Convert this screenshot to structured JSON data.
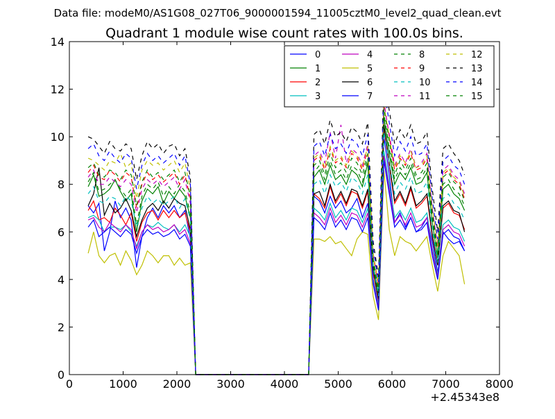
{
  "chart_data": {
    "type": "line",
    "suptitle": "Data file: modeM0/AS1G08_027T06_9000001594_11005cztM0_level2_quad_clean.evt",
    "title": "Quadrant 1 module wise count rates with 100.0s bins.",
    "xlabel": "",
    "ylabel": "",
    "x_offset_label": "+2.45343e8",
    "xlim": [
      0,
      8000
    ],
    "ylim": [
      0,
      14
    ],
    "x_ticks": [
      0,
      1000,
      2000,
      3000,
      4000,
      5000,
      6000,
      7000,
      8000
    ],
    "y_ticks": [
      0,
      2,
      4,
      6,
      8,
      10,
      12,
      14
    ],
    "grid": false,
    "legend": {
      "position": "top-right",
      "columns": 4
    },
    "x": [
      350,
      450,
      550,
      650,
      750,
      850,
      950,
      1050,
      1150,
      1250,
      1350,
      1450,
      1550,
      1650,
      1750,
      1850,
      1950,
      2050,
      2150,
      2250,
      2350,
      2450,
      2550,
      2650,
      2750,
      2850,
      2950,
      3050,
      3150,
      3250,
      3350,
      3450,
      3550,
      3650,
      3750,
      3850,
      3950,
      4050,
      4150,
      4250,
      4350,
      4450,
      4550,
      4650,
      4750,
      4850,
      4950,
      5050,
      5150,
      5250,
      5350,
      5450,
      5550,
      5650,
      5750,
      5850,
      5950,
      6050,
      6150,
      6250,
      6350,
      6450,
      6550,
      6650,
      6750,
      6850,
      6950,
      7050,
      7150,
      7250,
      7350
    ],
    "series": [
      {
        "name": "0",
        "color": "#0000ff",
        "dash": "solid",
        "values": [
          7.1,
          6.8,
          7.2,
          5.2,
          6.0,
          7.3,
          6.6,
          7.0,
          6.5,
          4.5,
          5.8,
          6.6,
          7.0,
          6.6,
          7.1,
          6.8,
          7.1,
          6.6,
          6.9,
          5.7,
          0,
          0,
          0,
          0,
          0,
          0,
          0,
          0,
          0,
          0,
          0,
          0,
          0,
          0,
          0,
          0,
          0,
          0,
          0,
          0,
          0,
          0,
          7.5,
          7.3,
          6.8,
          7.5,
          7.0,
          7.3,
          6.8,
          7.0,
          7.4,
          6.6,
          7.2,
          4.0,
          3.0,
          10.0,
          8.4,
          6.4,
          6.8,
          6.2,
          6.6,
          6.0,
          6.2,
          6.6,
          5.6,
          4.3,
          6.0,
          5.7,
          5.5,
          5.6,
          5.2
        ]
      },
      {
        "name": "1",
        "color": "#008000",
        "dash": "solid",
        "values": [
          7.9,
          8.4,
          7.5,
          7.6,
          7.8,
          8.2,
          7.7,
          7.3,
          7.6,
          6.0,
          7.3,
          7.8,
          7.6,
          7.9,
          7.2,
          7.7,
          7.4,
          7.8,
          7.5,
          6.6,
          0,
          0,
          0,
          0,
          0,
          0,
          0,
          0,
          0,
          0,
          0,
          0,
          0,
          0,
          0,
          0,
          0,
          0,
          0,
          0,
          0,
          0,
          8.3,
          8.6,
          8.0,
          8.8,
          8.2,
          8.4,
          8.0,
          8.6,
          8.4,
          7.9,
          8.9,
          4.6,
          3.4,
          10.8,
          9.3,
          8.0,
          8.5,
          8.2,
          8.7,
          8.0,
          8.1,
          8.5,
          6.4,
          4.9,
          7.8,
          8.0,
          7.6,
          7.4,
          6.9
        ]
      },
      {
        "name": "2",
        "color": "#ff0000",
        "dash": "solid",
        "values": [
          6.9,
          7.3,
          6.5,
          6.6,
          6.4,
          7.0,
          6.7,
          6.3,
          6.8,
          5.6,
          6.4,
          6.8,
          6.9,
          6.5,
          6.9,
          6.6,
          6.9,
          6.6,
          6.8,
          6.0,
          0,
          0,
          0,
          0,
          0,
          0,
          0,
          0,
          0,
          0,
          0,
          0,
          0,
          0,
          0,
          0,
          0,
          0,
          0,
          0,
          0,
          0,
          7.6,
          7.4,
          7.0,
          7.9,
          7.2,
          7.6,
          7.1,
          7.7,
          7.6,
          7.0,
          7.7,
          4.3,
          3.1,
          10.4,
          8.8,
          7.2,
          7.6,
          7.1,
          7.8,
          7.0,
          7.2,
          7.5,
          5.8,
          4.6,
          7.0,
          7.2,
          6.8,
          6.7,
          6.1
        ]
      },
      {
        "name": "3",
        "color": "#00bfbf",
        "dash": "solid",
        "values": [
          6.6,
          6.7,
          6.5,
          6.0,
          6.2,
          6.2,
          6.1,
          6.3,
          6.0,
          5.4,
          6.0,
          6.3,
          6.2,
          6.4,
          6.2,
          6.1,
          6.3,
          6.0,
          6.3,
          5.8,
          0,
          0,
          0,
          0,
          0,
          0,
          0,
          0,
          0,
          0,
          0,
          0,
          0,
          0,
          0,
          0,
          0,
          0,
          0,
          0,
          0,
          0,
          7.0,
          6.8,
          6.5,
          7.2,
          6.6,
          6.9,
          6.5,
          7.0,
          6.9,
          6.4,
          7.0,
          4.0,
          2.9,
          9.4,
          8.0,
          6.6,
          6.9,
          6.5,
          7.0,
          6.4,
          6.5,
          6.8,
          5.3,
          4.2,
          6.3,
          6.5,
          6.2,
          6.1,
          5.6
        ]
      },
      {
        "name": "4",
        "color": "#bf00bf",
        "dash": "solid",
        "values": [
          6.5,
          6.6,
          6.2,
          6.0,
          6.4,
          6.2,
          6.0,
          6.3,
          6.1,
          5.3,
          6.0,
          6.3,
          6.1,
          6.2,
          6.0,
          6.1,
          6.3,
          5.9,
          6.1,
          5.5,
          0,
          0,
          0,
          0,
          0,
          0,
          0,
          0,
          0,
          0,
          0,
          0,
          0,
          0,
          0,
          0,
          0,
          0,
          0,
          0,
          0,
          0,
          6.8,
          6.6,
          6.3,
          7.0,
          6.4,
          6.7,
          6.3,
          6.8,
          6.7,
          6.2,
          6.8,
          3.9,
          2.8,
          9.2,
          7.8,
          6.4,
          6.7,
          6.3,
          6.8,
          6.2,
          6.3,
          6.6,
          5.2,
          4.1,
          6.1,
          6.3,
          6.0,
          5.9,
          5.4
        ]
      },
      {
        "name": "5",
        "color": "#bfbf00",
        "dash": "solid",
        "values": [
          5.1,
          6.0,
          5.0,
          4.7,
          5.0,
          5.1,
          4.6,
          5.2,
          4.8,
          4.2,
          4.6,
          5.2,
          5.0,
          4.7,
          5.0,
          5.0,
          4.6,
          4.9,
          4.6,
          4.7,
          0,
          0,
          0,
          0,
          0,
          0,
          0,
          0,
          0,
          0,
          0,
          0,
          0,
          0,
          0,
          0,
          0,
          0,
          0,
          0,
          0,
          0,
          5.7,
          5.7,
          5.6,
          5.8,
          5.5,
          5.6,
          5.3,
          5.0,
          5.7,
          6.0,
          5.9,
          3.3,
          2.3,
          8.6,
          6.1,
          5.0,
          5.8,
          5.6,
          5.5,
          5.2,
          5.5,
          5.8,
          4.6,
          3.5,
          5.0,
          5.6,
          5.3,
          5.0,
          3.8
        ]
      },
      {
        "name": "6",
        "color": "#000000",
        "dash": "solid",
        "values": [
          7.1,
          7.6,
          8.7,
          6.7,
          7.2,
          6.8,
          7.0,
          7.4,
          6.9,
          5.8,
          6.5,
          7.0,
          7.2,
          6.9,
          7.3,
          7.0,
          7.4,
          7.2,
          7.1,
          6.1,
          0,
          0,
          0,
          0,
          0,
          0,
          0,
          0,
          0,
          0,
          0,
          0,
          0,
          0,
          0,
          0,
          0,
          0,
          0,
          0,
          0,
          0,
          7.6,
          7.7,
          7.1,
          8.0,
          7.3,
          7.7,
          7.2,
          7.8,
          7.7,
          7.1,
          7.8,
          4.4,
          3.2,
          10.5,
          8.9,
          7.3,
          7.7,
          7.2,
          7.9,
          7.1,
          7.3,
          7.6,
          5.9,
          4.6,
          7.1,
          7.3,
          6.9,
          6.8,
          6.0
        ]
      },
      {
        "name": "7",
        "color": "#0000ff",
        "dash": "solid",
        "values": [
          6.2,
          6.5,
          5.8,
          6.0,
          6.2,
          6.0,
          5.8,
          6.1,
          5.9,
          5.1,
          5.8,
          6.1,
          5.9,
          6.0,
          5.8,
          5.9,
          6.1,
          5.7,
          5.9,
          5.4,
          0,
          0,
          0,
          0,
          0,
          0,
          0,
          0,
          0,
          0,
          0,
          0,
          0,
          0,
          0,
          0,
          0,
          0,
          0,
          0,
          0,
          0,
          6.6,
          6.4,
          6.1,
          6.8,
          6.2,
          6.5,
          6.1,
          6.6,
          6.5,
          6.0,
          6.6,
          3.8,
          2.7,
          9.0,
          7.6,
          6.2,
          6.5,
          6.1,
          6.6,
          6.0,
          6.1,
          6.4,
          5.0,
          4.0,
          5.9,
          6.1,
          5.8,
          5.7,
          5.2
        ]
      },
      {
        "name": "8",
        "color": "#008000",
        "dash": "dashed",
        "values": [
          8.1,
          8.5,
          7.7,
          7.8,
          8.0,
          8.2,
          7.8,
          7.5,
          7.8,
          6.3,
          7.5,
          8.0,
          7.8,
          8.1,
          7.5,
          7.9,
          7.6,
          8.0,
          7.7,
          6.8,
          0,
          0,
          0,
          0,
          0,
          0,
          0,
          0,
          0,
          0,
          0,
          0,
          0,
          0,
          0,
          0,
          0,
          0,
          0,
          0,
          0,
          0,
          8.5,
          8.8,
          8.2,
          9.0,
          8.4,
          8.6,
          8.2,
          8.8,
          8.6,
          8.1,
          9.1,
          4.7,
          3.5,
          11.0,
          9.5,
          8.2,
          8.7,
          8.4,
          8.9,
          8.2,
          8.3,
          8.7,
          6.6,
          5.0,
          8.0,
          8.2,
          7.8,
          7.6,
          7.1
        ]
      },
      {
        "name": "9",
        "color": "#ff0000",
        "dash": "dashed",
        "values": [
          8.5,
          8.8,
          8.3,
          8.2,
          8.6,
          8.4,
          8.1,
          8.5,
          8.3,
          7.0,
          8.0,
          8.5,
          8.2,
          8.4,
          8.1,
          8.3,
          8.5,
          8.0,
          8.4,
          7.4,
          0,
          0,
          0,
          0,
          0,
          0,
          0,
          0,
          0,
          0,
          0,
          0,
          0,
          0,
          0,
          0,
          0,
          0,
          0,
          0,
          0,
          0,
          9.0,
          9.2,
          8.6,
          9.5,
          8.9,
          9.1,
          8.7,
          9.3,
          9.1,
          8.6,
          9.5,
          5.0,
          3.7,
          11.5,
          10.0,
          8.6,
          9.1,
          8.8,
          9.3,
          8.6,
          8.7,
          9.1,
          6.9,
          5.3,
          8.4,
          8.6,
          8.2,
          8.0,
          7.4
        ]
      },
      {
        "name": "10",
        "color": "#00bfbf",
        "dash": "dashed",
        "values": [
          7.6,
          7.9,
          7.3,
          7.2,
          7.5,
          7.4,
          7.1,
          7.5,
          7.3,
          6.2,
          7.0,
          7.5,
          7.2,
          7.4,
          7.1,
          7.3,
          7.5,
          7.0,
          7.4,
          6.5,
          0,
          0,
          0,
          0,
          0,
          0,
          0,
          0,
          0,
          0,
          0,
          0,
          0,
          0,
          0,
          0,
          0,
          0,
          0,
          0,
          0,
          0,
          8.0,
          8.2,
          7.6,
          8.4,
          7.9,
          8.1,
          7.7,
          8.3,
          8.1,
          7.6,
          8.4,
          4.5,
          3.3,
          10.2,
          8.9,
          7.6,
          8.1,
          7.8,
          8.3,
          7.6,
          7.7,
          8.1,
          6.1,
          4.7,
          7.4,
          7.6,
          7.2,
          7.0,
          6.5
        ]
      },
      {
        "name": "11",
        "color": "#bf00bf",
        "dash": "dashed",
        "values": [
          8.3,
          8.6,
          8.0,
          8.0,
          8.3,
          8.1,
          7.9,
          8.2,
          8.0,
          6.8,
          7.8,
          8.2,
          8.0,
          8.2,
          7.9,
          8.1,
          8.3,
          7.8,
          8.2,
          7.2,
          0,
          0,
          0,
          0,
          0,
          0,
          0,
          0,
          0,
          0,
          0,
          0,
          0,
          0,
          0,
          0,
          0,
          0,
          0,
          0,
          0,
          0,
          9.2,
          9.4,
          8.9,
          10.2,
          9.1,
          10.5,
          8.9,
          9.5,
          9.3,
          8.8,
          9.7,
          5.1,
          3.8,
          11.4,
          10.1,
          8.8,
          9.3,
          8.9,
          9.5,
          8.7,
          8.9,
          9.3,
          7.0,
          5.4,
          8.6,
          8.8,
          8.4,
          8.2,
          7.6
        ]
      },
      {
        "name": "12",
        "color": "#bfbf00",
        "dash": "dashed",
        "values": [
          9.1,
          9.0,
          8.8,
          8.6,
          9.0,
          8.9,
          9.3,
          8.7,
          8.9,
          7.4,
          8.6,
          9.0,
          8.8,
          8.9,
          8.6,
          8.8,
          9.0,
          8.5,
          8.9,
          7.8,
          0,
          0,
          0,
          0,
          0,
          0,
          0,
          0,
          0,
          0,
          0,
          0,
          0,
          0,
          0,
          0,
          0,
          0,
          0,
          0,
          0,
          0,
          9.1,
          9.3,
          8.7,
          9.6,
          9.0,
          9.2,
          8.8,
          9.4,
          9.2,
          8.7,
          9.6,
          5.1,
          3.8,
          11.3,
          10.0,
          8.7,
          9.2,
          8.9,
          9.4,
          8.7,
          8.8,
          9.2,
          7.0,
          5.4,
          8.5,
          8.7,
          8.3,
          8.1,
          7.5
        ]
      },
      {
        "name": "13",
        "color": "#000000",
        "dash": "dashed",
        "values": [
          10.0,
          9.9,
          9.6,
          9.3,
          9.8,
          9.5,
          9.4,
          9.7,
          9.5,
          8.2,
          9.2,
          9.8,
          9.5,
          9.7,
          9.3,
          9.6,
          9.7,
          9.2,
          9.5,
          8.3,
          0,
          0,
          0,
          0,
          0,
          0,
          0,
          0,
          0,
          0,
          0,
          0,
          0,
          0,
          0,
          0,
          0,
          0,
          0,
          0,
          0,
          0,
          10.1,
          10.3,
          9.7,
          10.7,
          10.0,
          10.2,
          9.8,
          10.4,
          10.2,
          9.7,
          10.6,
          5.6,
          4.1,
          12.5,
          11.1,
          9.7,
          10.3,
          9.9,
          10.5,
          9.7,
          9.8,
          10.2,
          7.8,
          6.0,
          9.5,
          9.7,
          9.3,
          9.0,
          8.4
        ]
      },
      {
        "name": "14",
        "color": "#0000ff",
        "dash": "dashed",
        "values": [
          9.5,
          9.7,
          9.2,
          9.0,
          9.4,
          9.1,
          8.9,
          9.3,
          9.1,
          7.8,
          8.8,
          9.3,
          9.0,
          9.2,
          8.9,
          9.1,
          9.3,
          8.8,
          9.2,
          8.0,
          0,
          0,
          0,
          0,
          0,
          0,
          0,
          0,
          0,
          0,
          0,
          0,
          0,
          0,
          0,
          0,
          0,
          0,
          0,
          0,
          0,
          0,
          9.6,
          9.8,
          9.2,
          10.1,
          9.5,
          9.7,
          9.3,
          9.9,
          9.7,
          9.2,
          10.1,
          5.3,
          3.9,
          12.0,
          10.6,
          9.2,
          9.8,
          9.4,
          10.0,
          9.2,
          9.3,
          9.7,
          7.4,
          5.7,
          9.0,
          9.2,
          8.8,
          8.6,
          8.0
        ]
      },
      {
        "name": "15",
        "color": "#008000",
        "dash": "dashed",
        "values": [
          8.7,
          8.9,
          8.4,
          8.3,
          8.6,
          8.5,
          8.2,
          8.6,
          8.4,
          7.1,
          8.1,
          8.6,
          8.3,
          8.5,
          8.2,
          8.4,
          8.6,
          8.1,
          8.5,
          7.5,
          0,
          0,
          0,
          0,
          0,
          0,
          0,
          0,
          0,
          0,
          0,
          0,
          0,
          0,
          0,
          0,
          0,
          0,
          0,
          0,
          0,
          0,
          8.8,
          9.0,
          8.4,
          9.3,
          8.7,
          8.9,
          8.5,
          9.1,
          8.9,
          8.4,
          9.3,
          4.9,
          3.6,
          11.2,
          9.8,
          8.4,
          9.0,
          8.6,
          9.1,
          8.4,
          8.5,
          8.9,
          6.8,
          5.2,
          8.3,
          8.5,
          8.1,
          7.9,
          7.3
        ]
      }
    ]
  }
}
